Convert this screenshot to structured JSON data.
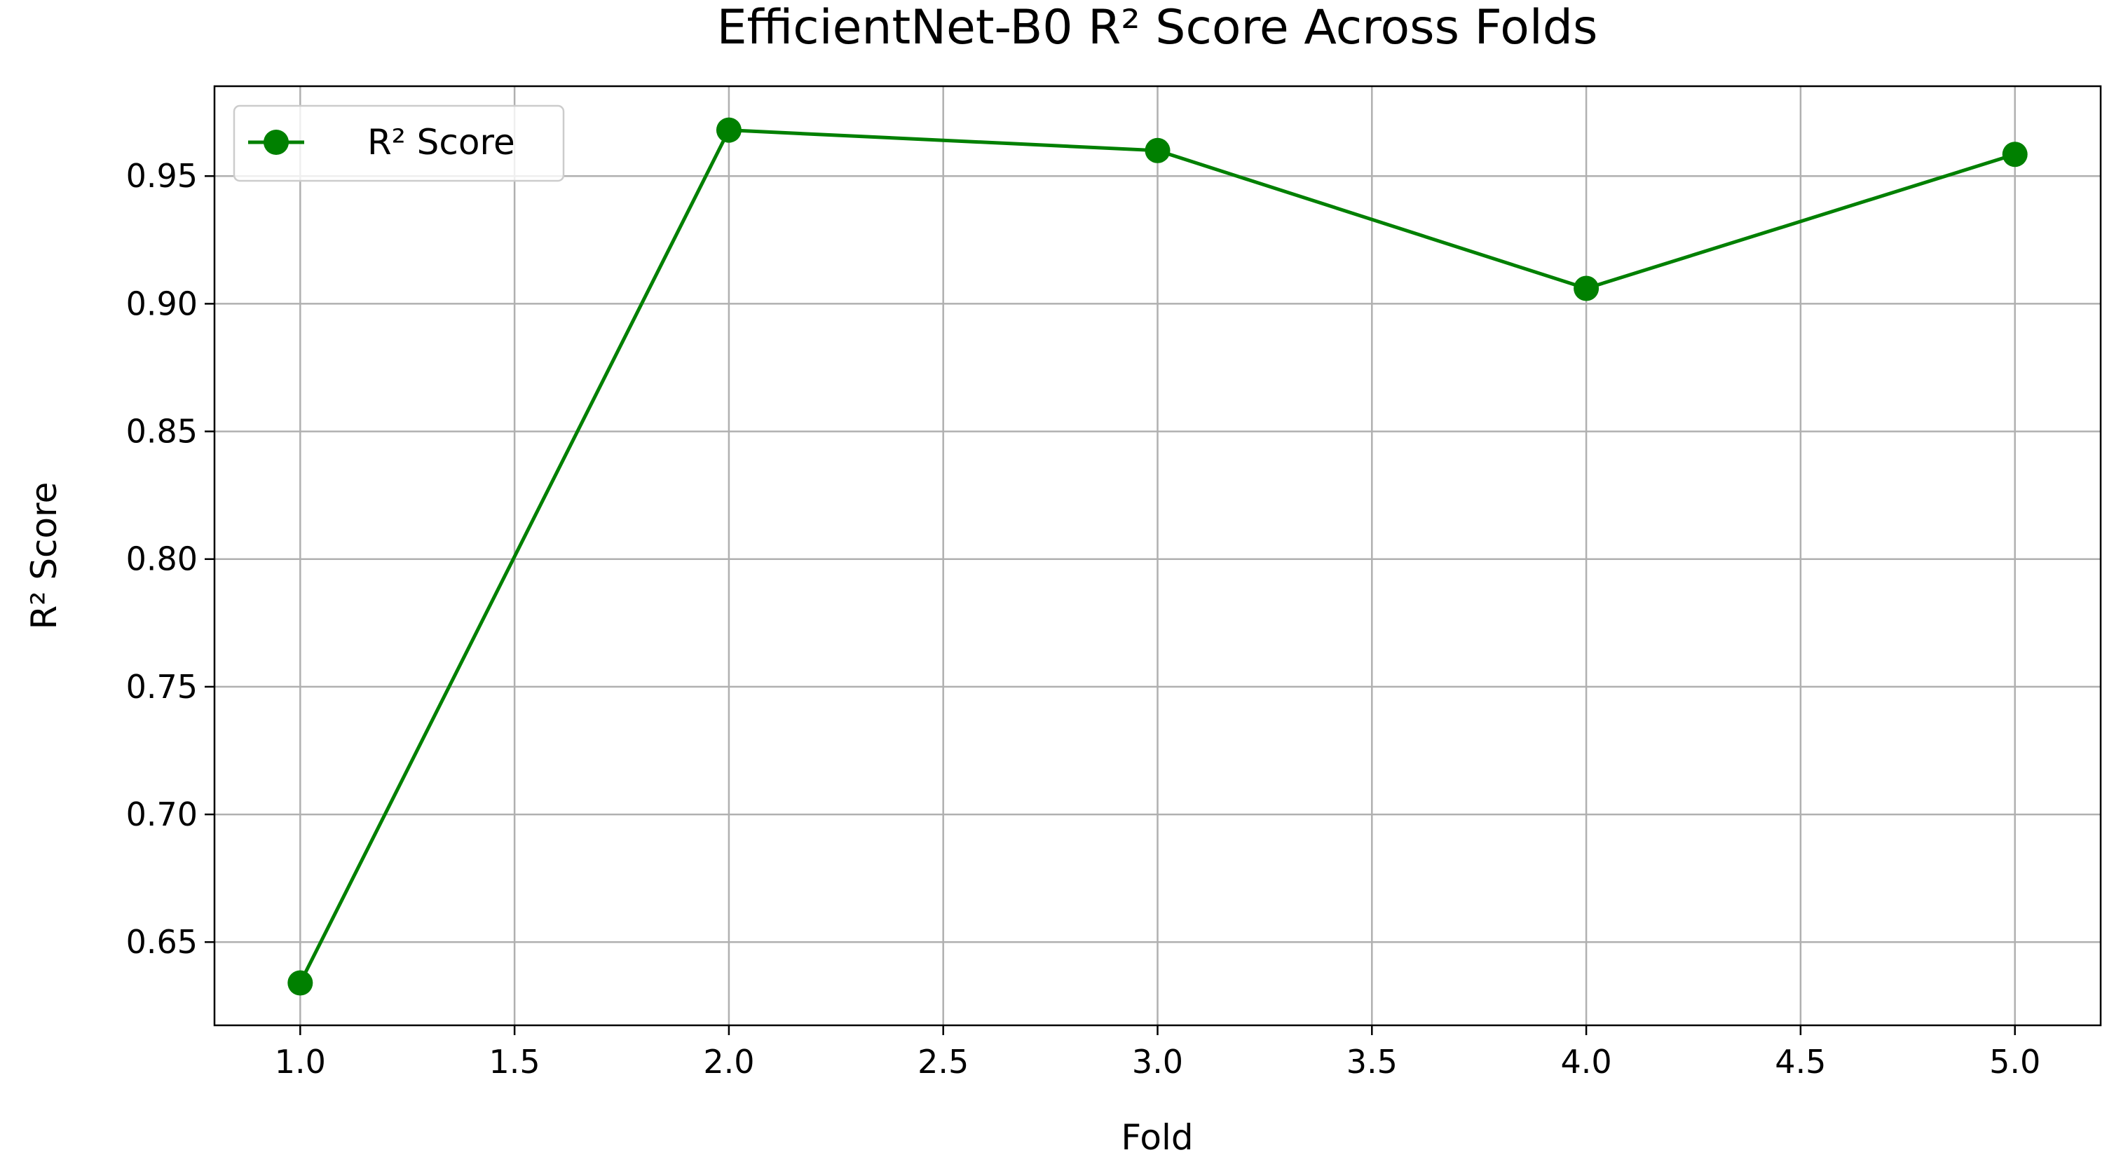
{
  "chart_data": {
    "type": "line",
    "title": "EfficientNet-B0 R² Score Across Folds",
    "xlabel": "Fold",
    "ylabel": "R² Score",
    "x": [
      1,
      2,
      3,
      4,
      5
    ],
    "series": [
      {
        "name": "R² Score",
        "color": "#008000",
        "values": [
          0.634,
          0.968,
          0.96,
          0.906,
          0.9585
        ]
      }
    ],
    "xlim": [
      0.8,
      5.2
    ],
    "xticks": [
      {
        "value": 1,
        "label": "1.0"
      },
      1.5,
      {
        "value": 2,
        "label": "2.0"
      },
      2.5,
      {
        "value": 3,
        "label": "3.0"
      },
      3.5,
      {
        "value": 4,
        "label": "4.0"
      },
      4.5,
      {
        "value": 5,
        "label": "5.0"
      }
    ],
    "ylim": [
      0.6174,
      0.9852
    ],
    "yticks": [
      0.65,
      {
        "value": 0.7,
        "label": "0.70"
      },
      0.75,
      {
        "value": 0.8,
        "label": "0.80"
      },
      0.85,
      {
        "value": 0.9,
        "label": "0.90"
      },
      0.95
    ],
    "grid": true,
    "legend": "upper left"
  }
}
